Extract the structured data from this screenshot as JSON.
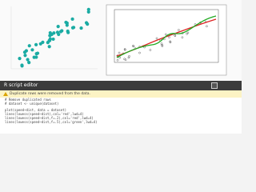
{
  "editor": {
    "title": "R script editor",
    "warning": "Duplicate rows were removed from the data.",
    "code": [
      "# Remove duplicated rows",
      "# dataset <- unique(dataset)",
      "plot(speed~dist, data = dataset)",
      "lines(lowess(speed~dist),col='red',lwd=4)",
      "lines(lowess(speed~dist,f=.2),col='red',lwd=4)",
      "lines(lowess(speed~dist,f=.5),col='green',lwd=4)"
    ]
  }
}
